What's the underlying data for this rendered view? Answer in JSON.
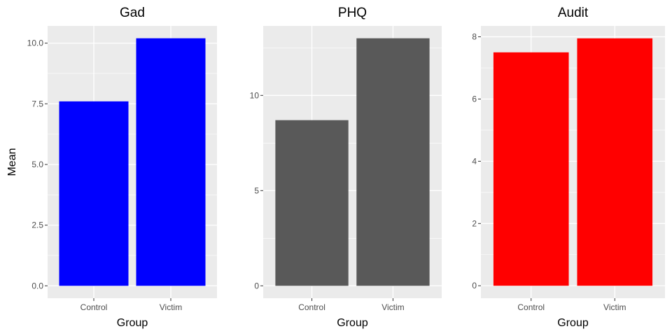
{
  "chart_data": [
    {
      "type": "bar",
      "title": "Gad",
      "xlabel": "Group",
      "ylabel": "Mean",
      "categories": [
        "Control",
        "Victim"
      ],
      "values": [
        7.6,
        10.2
      ],
      "color": "#0000FF",
      "yticks": [
        0,
        2.5,
        5,
        7.5,
        10
      ],
      "ytick_labels": [
        "0.0",
        "2.5",
        "5.0",
        "7.5",
        "10.0"
      ],
      "ylim": [
        -0.51,
        10.71
      ]
    },
    {
      "type": "bar",
      "title": "PHQ",
      "xlabel": "Group",
      "ylabel": "",
      "categories": [
        "Control",
        "Victim"
      ],
      "values": [
        8.7,
        13.0
      ],
      "color": "#595959",
      "yticks": [
        0,
        5,
        10
      ],
      "ytick_labels": [
        "0",
        "5",
        "10"
      ],
      "ylim": [
        -0.65,
        13.65
      ]
    },
    {
      "type": "bar",
      "title": "Audit",
      "xlabel": "Group",
      "ylabel": "",
      "categories": [
        "Control",
        "Victim"
      ],
      "values": [
        7.5,
        7.95
      ],
      "color": "#FF0000",
      "yticks": [
        0,
        2,
        4,
        6,
        8
      ],
      "ytick_labels": [
        "0",
        "2",
        "4",
        "6",
        "8"
      ],
      "ylim": [
        -0.4,
        8.35
      ]
    }
  ]
}
